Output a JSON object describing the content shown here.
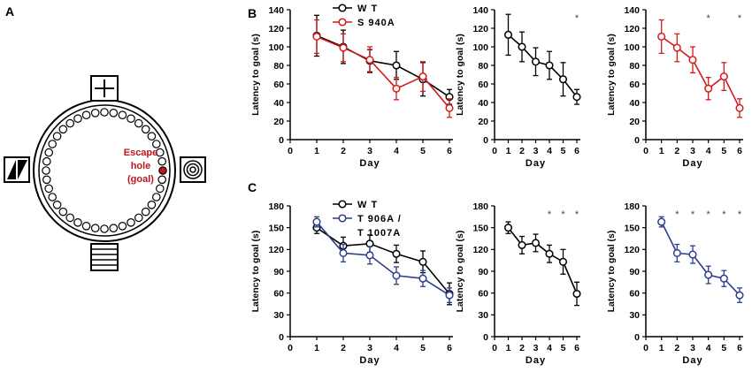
{
  "panels": {
    "a": "A",
    "b": "B",
    "c": "C"
  },
  "maze": {
    "label_lines": [
      "Escape",
      "hole",
      "(goal)"
    ],
    "label_color": "#c0141c",
    "escape_hole_color": "#c0141c"
  },
  "colors": {
    "wt": "#000000",
    "mut_b": "#d7191c",
    "mut_c": "#2c3e8c"
  },
  "chart_data": [
    {
      "id": "B1",
      "type": "line",
      "xlabel": "Day",
      "ylabel": "Latency to goal (s)",
      "xlim": [
        0,
        6
      ],
      "ylim": [
        0,
        140
      ],
      "xticks": [
        "0",
        "1",
        "2",
        "3",
        "4",
        "5",
        "6"
      ],
      "yticks": [
        "0",
        "20",
        "40",
        "60",
        "80",
        "100",
        "120",
        "140"
      ],
      "legend": [
        "W T",
        "S 940A"
      ],
      "legend_position": "top",
      "stars": [],
      "series": [
        {
          "name": "W T",
          "color": "#000000",
          "x": [
            1,
            2,
            3,
            4,
            5,
            6
          ],
          "y": [
            112,
            100,
            85,
            80,
            65,
            46
          ],
          "err": [
            22,
            18,
            12,
            15,
            18,
            8
          ]
        },
        {
          "name": "S 940A",
          "color": "#d7191c",
          "x": [
            1,
            2,
            3,
            4,
            5,
            6
          ],
          "y": [
            111,
            99,
            86,
            55,
            68,
            34
          ],
          "err": [
            18,
            15,
            14,
            12,
            16,
            10
          ]
        }
      ]
    },
    {
      "id": "B2",
      "type": "line",
      "xlabel": "Day",
      "ylabel": "Latency to goal (s)",
      "xlim": [
        0,
        6
      ],
      "ylim": [
        0,
        140
      ],
      "xticks": [
        "0",
        "1",
        "2",
        "3",
        "4",
        "5",
        "6"
      ],
      "yticks": [
        "0",
        "20",
        "40",
        "60",
        "80",
        "100",
        "120",
        "140"
      ],
      "stars": [
        {
          "x": 6,
          "label": "*"
        }
      ],
      "series": [
        {
          "name": "W T",
          "color": "#000000",
          "x": [
            1,
            2,
            3,
            4,
            5,
            6
          ],
          "y": [
            113,
            100,
            84,
            80,
            65,
            46
          ],
          "err": [
            22,
            16,
            15,
            15,
            18,
            8
          ]
        }
      ]
    },
    {
      "id": "B3",
      "type": "line",
      "xlabel": "Day",
      "ylabel": "Latency to goal (s)",
      "xlim": [
        0,
        6
      ],
      "ylim": [
        0,
        140
      ],
      "xticks": [
        "0",
        "1",
        "2",
        "3",
        "4",
        "5",
        "6"
      ],
      "yticks": [
        "0",
        "20",
        "40",
        "60",
        "80",
        "100",
        "120",
        "140"
      ],
      "stars": [
        {
          "x": 4,
          "label": "*"
        },
        {
          "x": 6,
          "label": "*"
        }
      ],
      "series": [
        {
          "name": "S 940A",
          "color": "#d7191c",
          "x": [
            1,
            2,
            3,
            4,
            5,
            6
          ],
          "y": [
            111,
            99,
            86,
            55,
            68,
            34
          ],
          "err": [
            18,
            15,
            14,
            12,
            15,
            10
          ]
        }
      ]
    },
    {
      "id": "C1",
      "type": "line",
      "xlabel": "Day",
      "ylabel": "Latency to goal (s)",
      "xlim": [
        0,
        6
      ],
      "ylim": [
        0,
        180
      ],
      "xticks": [
        "0",
        "1",
        "2",
        "3",
        "4",
        "5",
        "6"
      ],
      "yticks": [
        "0",
        "30",
        "60",
        "90",
        "120",
        "150",
        "180"
      ],
      "legend": [
        "W T",
        "T 906A /",
        "T 1007A"
      ],
      "legend_position": "top",
      "stars": [],
      "series": [
        {
          "name": "W T",
          "color": "#000000",
          "x": [
            1,
            2,
            3,
            4,
            5,
            6
          ],
          "y": [
            150,
            125,
            128,
            114,
            103,
            59
          ],
          "err": [
            8,
            12,
            12,
            12,
            15,
            15
          ]
        },
        {
          "name": "T 906A / T 1007A",
          "color": "#2c3e8c",
          "x": [
            1,
            2,
            3,
            4,
            5,
            6
          ],
          "y": [
            158,
            115,
            112,
            84,
            80,
            57
          ],
          "err": [
            7,
            12,
            12,
            12,
            11,
            10
          ]
        }
      ]
    },
    {
      "id": "C2",
      "type": "line",
      "xlabel": "Day",
      "ylabel": "Latency to goal (s)",
      "xlim": [
        0,
        6
      ],
      "ylim": [
        0,
        180
      ],
      "xticks": [
        "0",
        "1",
        "2",
        "3",
        "4",
        "5",
        "6"
      ],
      "yticks": [
        "0",
        "30",
        "60",
        "90",
        "120",
        "150",
        "180"
      ],
      "stars": [
        {
          "x": 4,
          "label": "*"
        },
        {
          "x": 5,
          "label": "*"
        },
        {
          "x": 6,
          "label": "*"
        }
      ],
      "series": [
        {
          "name": "W T",
          "color": "#000000",
          "x": [
            1,
            2,
            3,
            4,
            5,
            6
          ],
          "y": [
            150,
            126,
            129,
            114,
            103,
            59
          ],
          "err": [
            8,
            12,
            12,
            12,
            17,
            16
          ]
        }
      ]
    },
    {
      "id": "C3",
      "type": "line",
      "xlabel": "Day",
      "ylabel": "Latency to goal (s)",
      "xlim": [
        0,
        6
      ],
      "ylim": [
        0,
        180
      ],
      "xticks": [
        "0",
        "1",
        "2",
        "3",
        "4",
        "5",
        "6"
      ],
      "yticks": [
        "0",
        "30",
        "60",
        "90",
        "120",
        "150",
        "180"
      ],
      "stars": [
        {
          "x": 2,
          "label": "*"
        },
        {
          "x": 3,
          "label": "*"
        },
        {
          "x": 4,
          "label": "*"
        },
        {
          "x": 5,
          "label": "*"
        },
        {
          "x": 6,
          "label": "*"
        }
      ],
      "series": [
        {
          "name": "T 906A / T 1007A",
          "color": "#2c3e8c",
          "x": [
            1,
            2,
            3,
            4,
            5,
            6
          ],
          "y": [
            158,
            115,
            113,
            85,
            80,
            57
          ],
          "err": [
            7,
            12,
            12,
            12,
            11,
            10
          ]
        }
      ]
    }
  ]
}
